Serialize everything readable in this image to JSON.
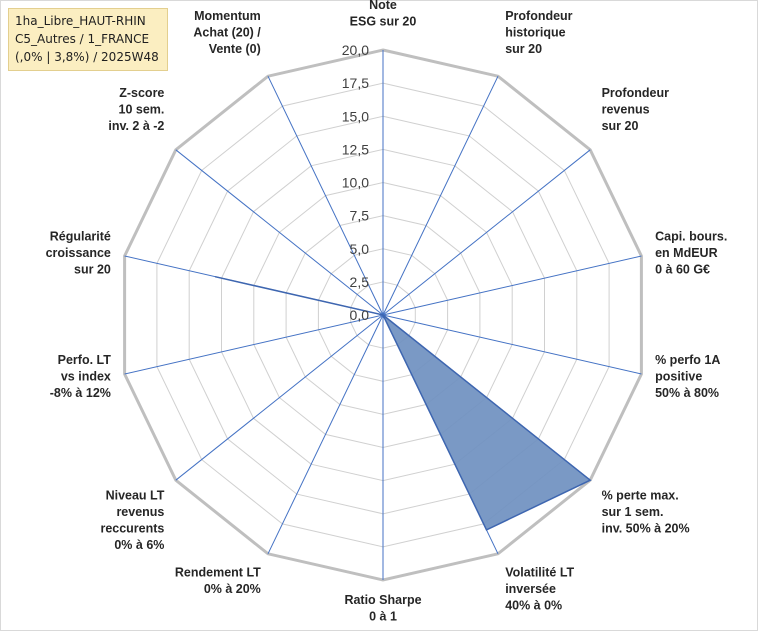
{
  "header": {
    "lines": [
      "1ha_Libre_HAUT-RHIN",
      "C5_Autres / 1_FRANCE",
      "(,0% | 3,8%) / 2025W48"
    ]
  },
  "chart_data": {
    "type": "radar",
    "rmax": 20,
    "ticks": [
      "0,0",
      "2,5",
      "5,0",
      "7,5",
      "10,0",
      "12,5",
      "15,0",
      "17,5",
      "20,0"
    ],
    "tick_values": [
      0,
      2.5,
      5,
      7.5,
      10,
      12.5,
      15,
      17.5,
      20
    ],
    "axes": [
      [
        "Note",
        "ESG sur 20"
      ],
      [
        "Profondeur",
        "historique",
        "sur 20"
      ],
      [
        "Profondeur",
        "revenus",
        "sur 20"
      ],
      [
        "Capi. bours.",
        "en MdEUR",
        "0 à 60 G€"
      ],
      [
        "% perfo 1A",
        "positive",
        "50% à 80%"
      ],
      [
        "% perte max.",
        "sur 1 sem.",
        "inv. 50% à 20%"
      ],
      [
        "Volatilité LT",
        "inversée",
        "40% à 0%"
      ],
      [
        "Ratio Sharpe",
        "0 à 1"
      ],
      [
        "Rendement LT",
        "0% à 20%"
      ],
      [
        "Niveau LT",
        "revenus",
        "reccurents",
        "0% à 6%"
      ],
      [
        "Perfo. LT",
        "vs index",
        "-8% à 12%"
      ],
      [
        "Régularité",
        "croissance",
        "sur 20"
      ],
      [
        "Z-score",
        "10 sem.",
        "inv. 2 à -2"
      ],
      [
        "Momentum",
        "Achat (20) /",
        "Vente (0)"
      ]
    ],
    "values": [
      0,
      0,
      0,
      0,
      0,
      20,
      18,
      0,
      0,
      0,
      0,
      13,
      0,
      0
    ],
    "colors": {
      "fill": "#6f90c0",
      "stroke": "#3e66b0",
      "grid": "#d0d0d0",
      "outer": "#bfbfbf",
      "spoke": "#4472c4"
    },
    "grid": true
  }
}
